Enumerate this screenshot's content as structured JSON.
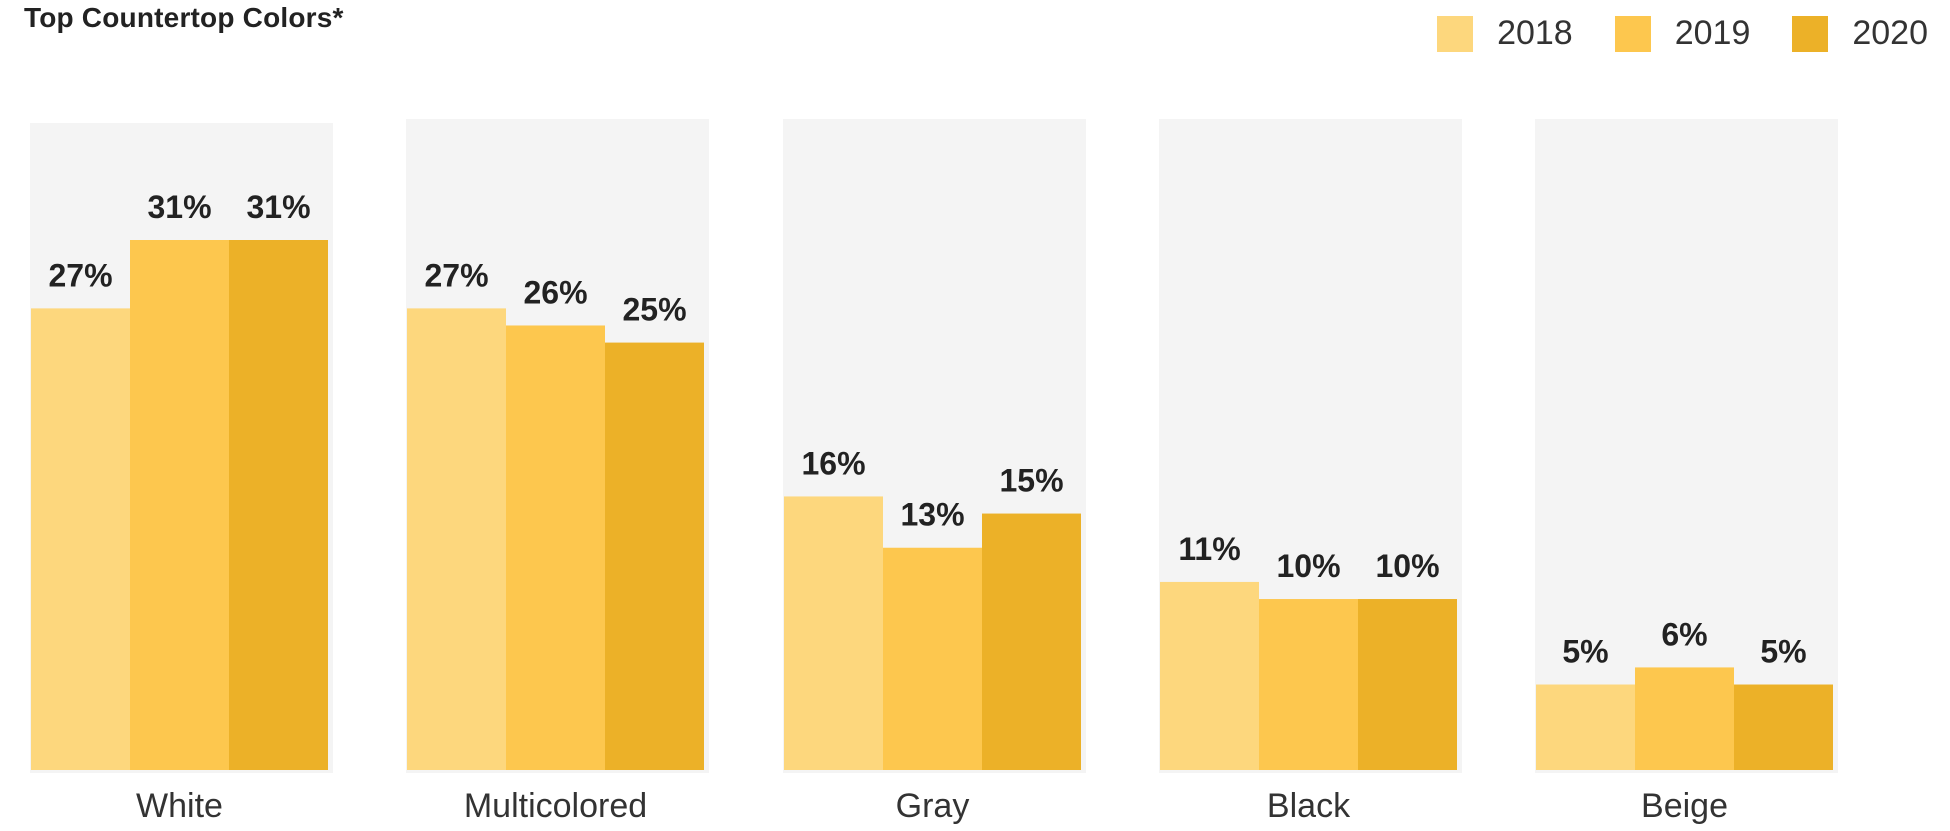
{
  "chart_data": {
    "type": "bar",
    "title": "Top Countertop Colors*",
    "categories": [
      "White",
      "Multicolored",
      "Gray",
      "Black",
      "Beige"
    ],
    "series": [
      {
        "name": "2018",
        "color": "#FDD77D",
        "values": [
          27,
          27,
          16,
          11,
          5
        ],
        "labels": [
          "27%",
          "27%",
          "16%",
          "11%",
          "5%"
        ]
      },
      {
        "name": "2019",
        "color": "#FDC74E",
        "values": [
          31,
          26,
          13,
          10,
          6
        ],
        "labels": [
          "31%",
          "26%",
          "13%",
          "10%",
          "6%"
        ]
      },
      {
        "name": "2020",
        "color": "#ECB128",
        "values": [
          31,
          25,
          15,
          10,
          5
        ],
        "labels": [
          "31%",
          "25%",
          "15%",
          "10%",
          "5%"
        ]
      }
    ],
    "ylim": [
      0,
      37
    ],
    "grid": false,
    "legend_position": "top-right",
    "panel_background": "#F4F4F4"
  }
}
